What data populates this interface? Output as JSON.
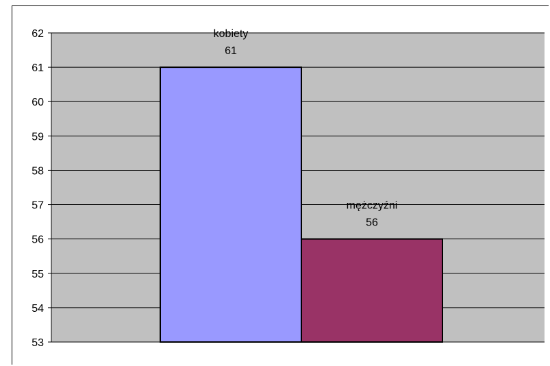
{
  "chart_data": {
    "type": "bar",
    "title": "",
    "xlabel": "",
    "ylabel": "",
    "ylim": [
      53,
      62
    ],
    "yticks": [
      53,
      54,
      55,
      56,
      57,
      58,
      59,
      60,
      61,
      62
    ],
    "grid": true,
    "legend": "none",
    "categories": [
      "kobiety",
      "mężczyźni"
    ],
    "values": [
      61,
      56
    ],
    "colors": [
      "#9999ff",
      "#993366"
    ],
    "plot_background": "#c0c0c0"
  }
}
